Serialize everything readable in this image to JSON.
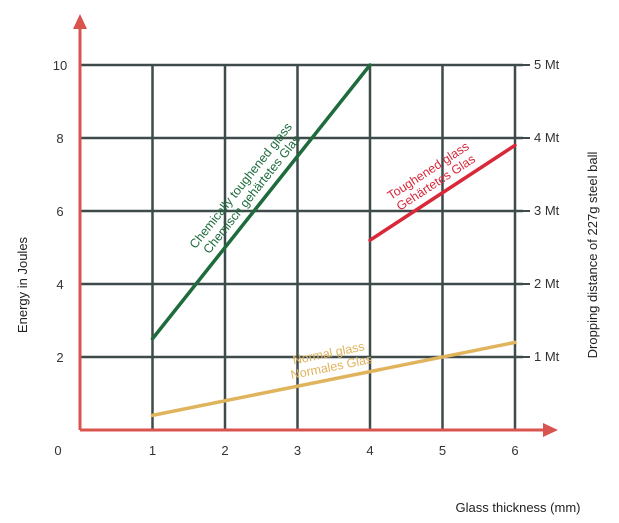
{
  "chart_data": {
    "type": "line",
    "xlabel": "Glass thickness (mm)",
    "ylabel": "Energy in Joules",
    "y2label": "Dropping distance of 227g steel ball",
    "xlim": [
      0,
      6
    ],
    "ylim": [
      0,
      10
    ],
    "x_ticks": [
      "0",
      "1",
      "2",
      "3",
      "4",
      "5",
      "6"
    ],
    "y_ticks": [
      "2",
      "4",
      "6",
      "8",
      "10"
    ],
    "y2_ticks": [
      "1 Mt",
      "2 Mt",
      "3 Mt",
      "4 Mt",
      "5 Mt"
    ],
    "y2_values": [
      2,
      4,
      6,
      8,
      10
    ],
    "grid": true,
    "series": [
      {
        "label_lines": [
          "Chemically toughened glass",
          "Chemisch gehärtetes Glas"
        ],
        "color": "#1e6b3c",
        "x": [
          1,
          4
        ],
        "y": [
          2.5,
          10
        ]
      },
      {
        "label_lines": [
          "Toughened glass",
          "Gehärtetes Glas"
        ],
        "color": "#d8283a",
        "x": [
          4,
          6
        ],
        "y": [
          5.2,
          7.8
        ]
      },
      {
        "label_lines": [
          "Normal glass",
          "Normales Glas"
        ],
        "color": "#e0b45c",
        "x": [
          1,
          6
        ],
        "y": [
          0.4,
          2.4
        ]
      }
    ]
  },
  "colors": {
    "axis": "#d9534f",
    "grid": "#3f4a4a"
  }
}
